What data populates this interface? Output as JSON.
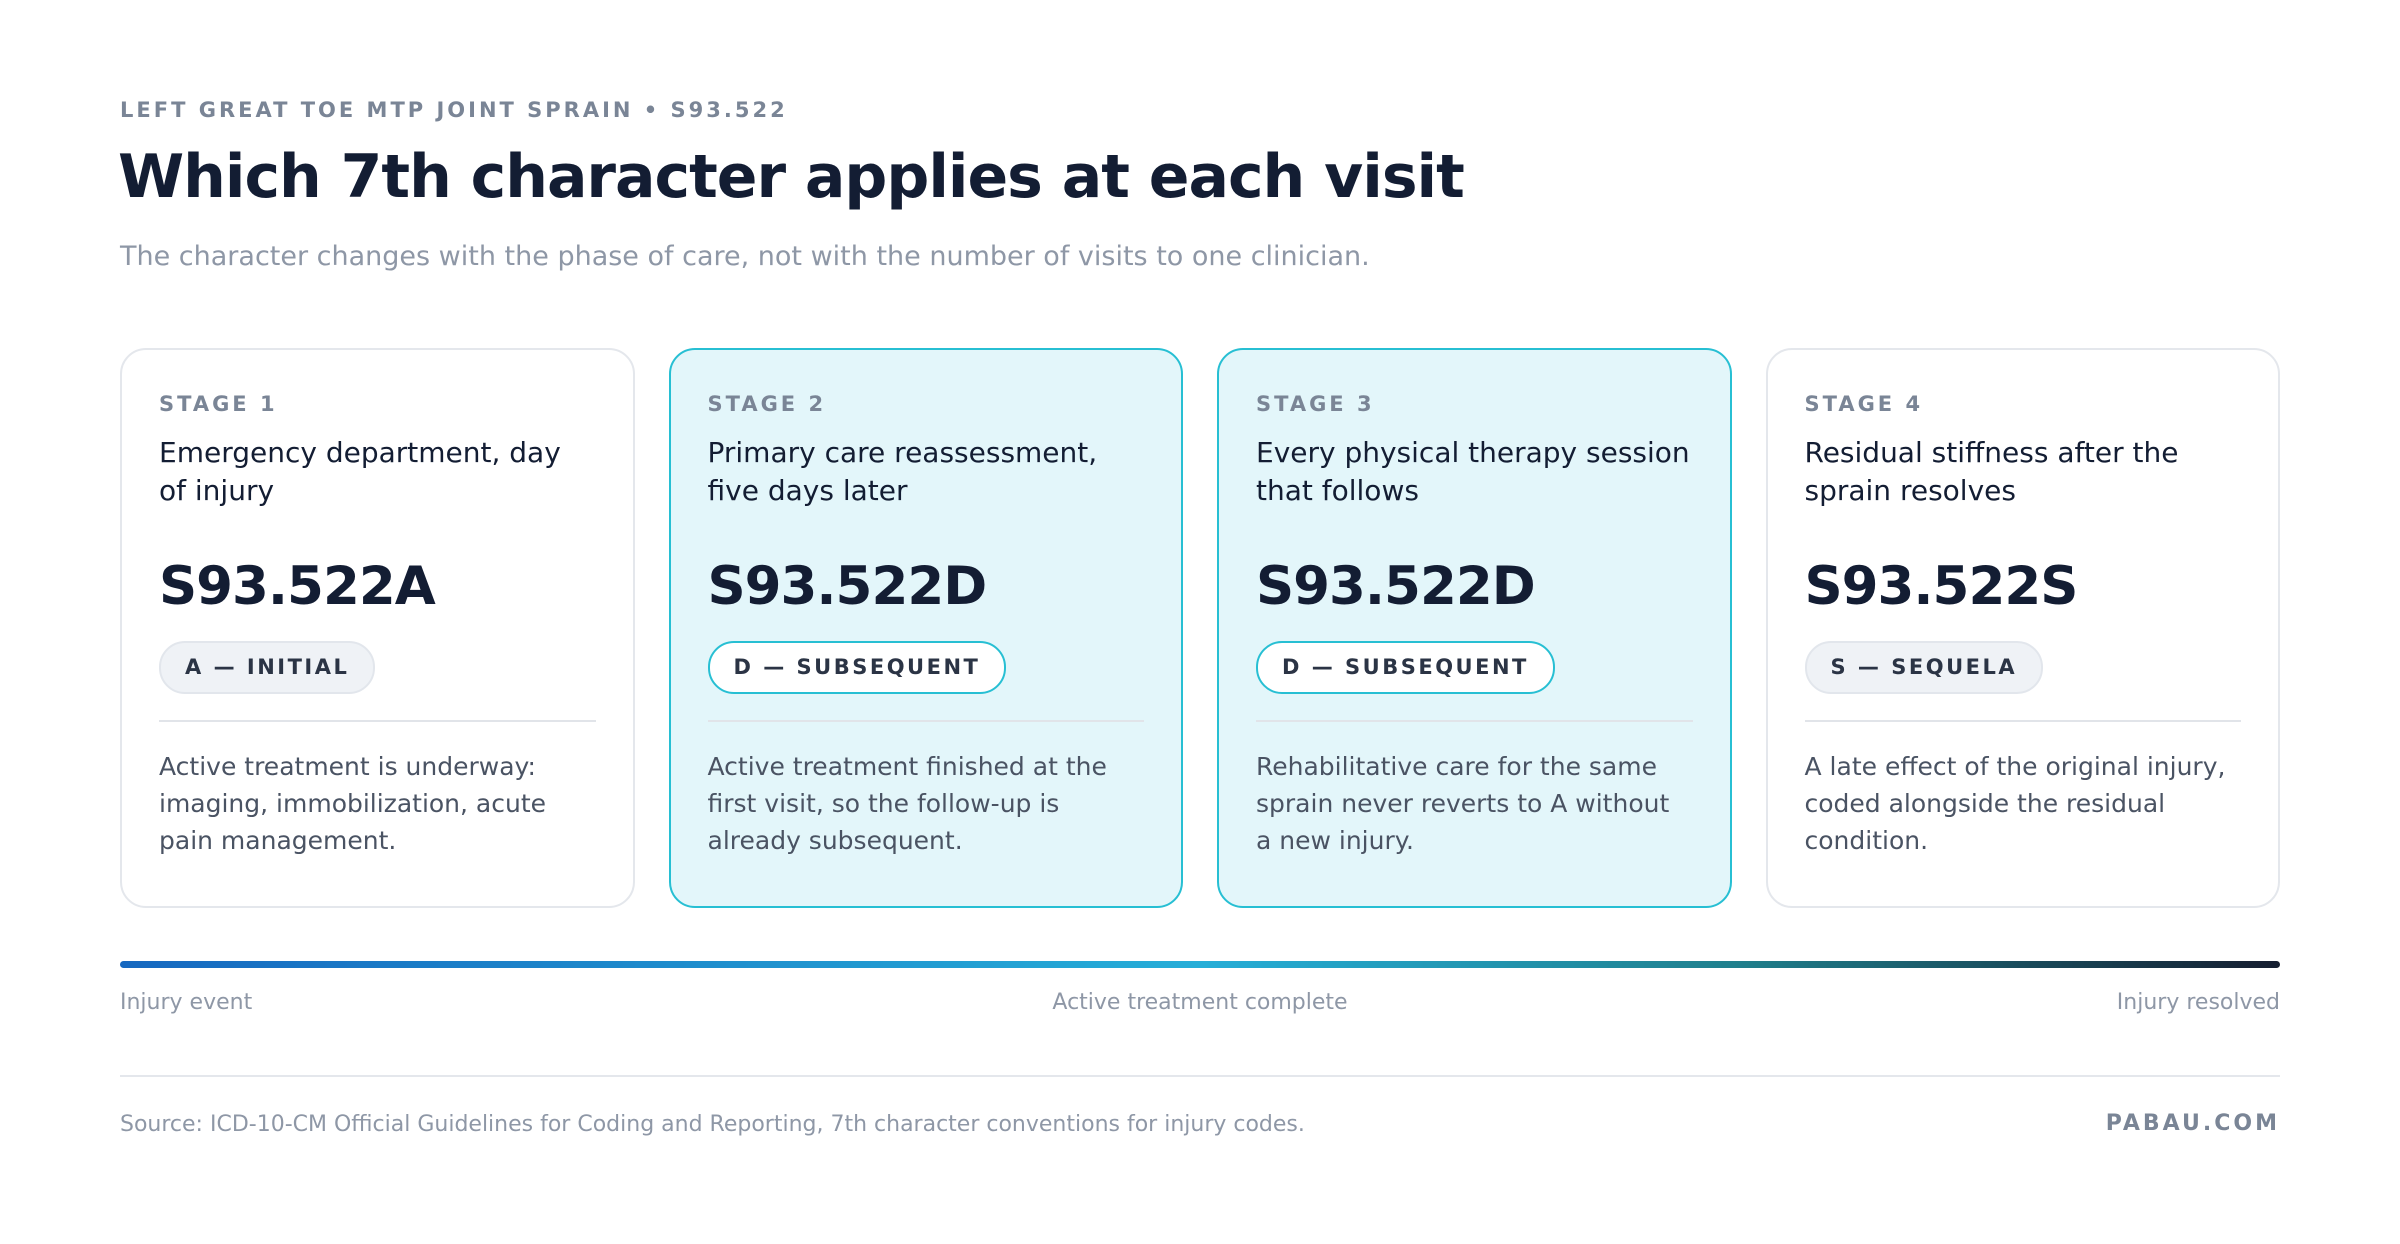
{
  "header": {
    "eyebrow": "LEFT GREAT TOE MTP JOINT SPRAIN • S93.522",
    "title": "Which 7th character applies at each visit",
    "subtitle": "The character changes with the phase of care, not with the number of visits to one clinician."
  },
  "cards": [
    {
      "stage": "STAGE 1",
      "heading": "Emergency department, day of injury",
      "code": "S93.522A",
      "pill": "A — INITIAL",
      "description": "Active treatment is underway: imaging, immobilization, acute pain management."
    },
    {
      "stage": "STAGE 2",
      "heading": "Primary care reassessment, five days later",
      "code": "S93.522D",
      "pill": "D — SUBSEQUENT",
      "description": "Active treatment finished at the first visit, so the follow-up is already subsequent."
    },
    {
      "stage": "STAGE 3",
      "heading": "Every physical therapy session that follows",
      "code": "S93.522D",
      "pill": "D — SUBSEQUENT",
      "description": "Rehabilitative care for the same sprain never reverts to A without a new injury."
    },
    {
      "stage": "STAGE 4",
      "heading": "Residual stiffness after the sprain resolves",
      "code": "S93.522S",
      "pill": "S — SEQUELA",
      "description": "A late effect of the original injury, coded alongside the residual condition."
    }
  ],
  "timeline": {
    "start": "Injury event",
    "middle": "Active treatment complete",
    "end": "Injury resolved"
  },
  "footer": {
    "source": "Source: ICD-10-CM Official Guidelines for Coding and Reporting, 7th character conventions for injury codes.",
    "brand": "PABAU.COM"
  }
}
